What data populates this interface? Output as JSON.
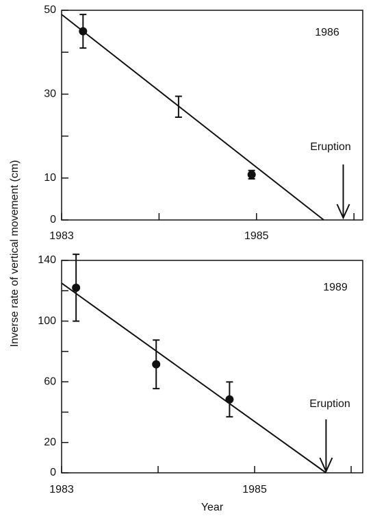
{
  "chart_data": [
    {
      "type": "scatter",
      "ylabel": "Inverse rate of vertical movement (cm)",
      "annotation": "1986",
      "eruption_label": "Eruption",
      "eruption_x": 1985.89,
      "xlim": [
        1983,
        1986.09
      ],
      "xticks": [
        1983,
        1985
      ],
      "x_minor_ticks": [
        1984,
        1986
      ],
      "ylim": [
        0,
        50
      ],
      "yticks": [
        0,
        10,
        30,
        50
      ],
      "y_minor_ticks": [
        20,
        40
      ],
      "series": [
        {
          "color": "#111111",
          "x": [
            1983.22,
            1984.2,
            1984.95
          ],
          "values": [
            45,
            27,
            10.8
          ],
          "errors": [
            4,
            2.5,
            1
          ],
          "markers": [
            true,
            false,
            true
          ]
        }
      ],
      "fit_line": {
        "x": [
          1983,
          1985.69
        ],
        "values": [
          49,
          0
        ]
      }
    },
    {
      "type": "scatter",
      "xlabel": "Year",
      "annotation": "1989",
      "eruption_label": "Eruption",
      "eruption_x": 1985.74,
      "xlim": [
        1983,
        1986.12
      ],
      "xticks": [
        1983,
        1985
      ],
      "x_minor_ticks": [
        1984,
        1986
      ],
      "ylim": [
        0,
        140
      ],
      "yticks": [
        0,
        20,
        60,
        100,
        140
      ],
      "y_minor_ticks": [
        40,
        80,
        120
      ],
      "series": [
        {
          "color": "#111111",
          "x": [
            1983.15,
            1983.98,
            1984.74
          ],
          "values": [
            122,
            71.5,
            48.4
          ],
          "errors": [
            22,
            16,
            11.5
          ],
          "markers": [
            true,
            true,
            true
          ]
        }
      ],
      "fit_line": {
        "x": [
          1983,
          1985.74
        ],
        "values": [
          125,
          0
        ]
      }
    }
  ]
}
